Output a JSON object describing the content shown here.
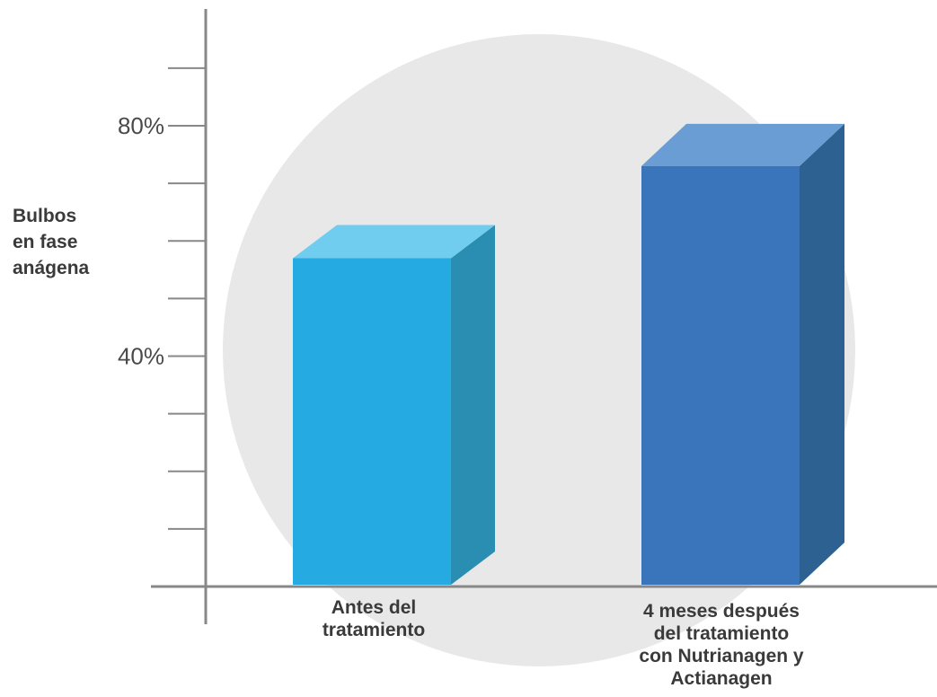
{
  "chart_data": {
    "type": "bar",
    "title": "",
    "ylabel_lines": [
      "Bulbos",
      "en fase",
      "anágena"
    ],
    "xlabel": "",
    "ylim": [
      0,
      90
    ],
    "yticks": [
      10,
      20,
      30,
      40,
      50,
      60,
      70,
      80,
      90
    ],
    "ytick_labels": {
      "40": "40%",
      "80": "80%"
    },
    "grid": false,
    "categories": [
      {
        "lines": [
          "Antes del",
          "tratamiento"
        ],
        "value": 57
      },
      {
        "lines": [
          "4 meses después",
          "del tratamiento",
          "con Nutrianagen y",
          "Actianagen"
        ],
        "value": 73
      }
    ],
    "colors": {
      "bar1_front": "#25aae1",
      "bar1_top": "#70cdf0",
      "bar1_side": "#2a8db2",
      "bar2_front": "#3a74bb",
      "bar2_top": "#699dd3",
      "bar2_side": "#2d6191",
      "axis": "#888888",
      "background_circle": "#e8e8e8"
    }
  }
}
